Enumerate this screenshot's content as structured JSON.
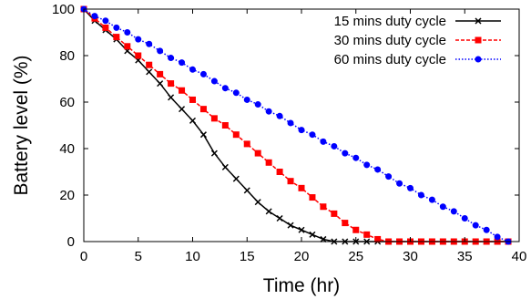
{
  "chart_data": {
    "type": "line",
    "title": "",
    "xlabel": "Time (hr)",
    "ylabel": "Battery level (%)",
    "xlim": [
      0,
      40
    ],
    "ylim": [
      0,
      100
    ],
    "xticks": [
      0,
      5,
      10,
      15,
      20,
      25,
      30,
      35,
      40
    ],
    "yticks": [
      0,
      20,
      40,
      60,
      80,
      100
    ],
    "grid": false,
    "legend_position": "top-right",
    "series": [
      {
        "name": "15 mins duty cycle",
        "color": "#000000",
        "line_style": "solid",
        "marker": "x",
        "x": [
          0,
          1,
          2,
          3,
          4,
          5,
          6,
          7,
          8,
          9,
          10,
          11,
          12,
          13,
          14,
          15,
          16,
          17,
          18,
          19,
          20,
          21,
          22,
          23,
          24,
          25,
          26,
          27,
          28,
          29,
          30,
          31,
          32,
          33,
          34,
          35,
          36,
          37,
          38,
          39
        ],
        "y": [
          100,
          95,
          91,
          87,
          82,
          78,
          73,
          68,
          62,
          57,
          52,
          46,
          38,
          32,
          27,
          22,
          17,
          13,
          10,
          7,
          5,
          3,
          1,
          0,
          0,
          0,
          0,
          0,
          0,
          0,
          0,
          0,
          0,
          0,
          0,
          0,
          0,
          0,
          0,
          0
        ]
      },
      {
        "name": "30 mins duty cycle",
        "color": "#ff0000",
        "line_style": "dashed",
        "marker": "square",
        "x": [
          0,
          1,
          2,
          3,
          4,
          5,
          6,
          7,
          8,
          9,
          10,
          11,
          12,
          13,
          14,
          15,
          16,
          17,
          18,
          19,
          20,
          21,
          22,
          23,
          24,
          25,
          26,
          27,
          28,
          29,
          30,
          31,
          32,
          33,
          34,
          35,
          36,
          37,
          38,
          39
        ],
        "y": [
          100,
          96,
          92,
          88,
          84,
          80,
          76,
          72,
          68,
          65,
          61,
          57,
          53,
          50,
          46,
          42,
          38,
          34,
          30,
          26,
          23,
          19,
          15,
          12,
          8,
          5,
          3,
          1,
          0,
          0,
          0,
          0,
          0,
          0,
          0,
          0,
          0,
          0,
          0,
          0
        ]
      },
      {
        "name": "60 mins duty cycle",
        "color": "#0000ff",
        "line_style": "dotted",
        "marker": "circle",
        "x": [
          0,
          1,
          2,
          3,
          4,
          5,
          6,
          7,
          8,
          9,
          10,
          11,
          12,
          13,
          14,
          15,
          16,
          17,
          18,
          19,
          20,
          21,
          22,
          23,
          24,
          25,
          26,
          27,
          28,
          29,
          30,
          31,
          32,
          33,
          34,
          35,
          36,
          37,
          38,
          39
        ],
        "y": [
          100,
          97,
          95,
          92,
          90,
          87,
          85,
          82,
          79,
          77,
          74,
          72,
          69,
          66,
          64,
          61,
          59,
          56,
          54,
          51,
          48,
          46,
          43,
          41,
          38,
          36,
          33,
          31,
          28,
          25,
          23,
          20,
          18,
          15,
          13,
          10,
          7,
          5,
          2,
          0
        ]
      }
    ]
  }
}
